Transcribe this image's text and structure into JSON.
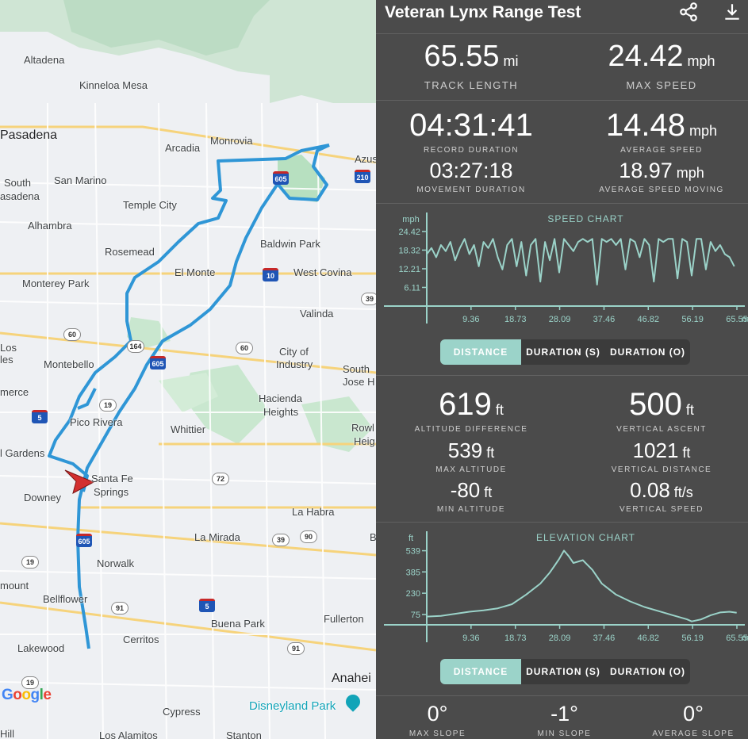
{
  "app": {
    "title": "Veteran Lynx Range Test",
    "share_icon": "share-icon",
    "download_icon": "download-icon"
  },
  "stats": {
    "track_length": {
      "value": "65.55",
      "unit": "mi",
      "label": "TRACK LENGTH"
    },
    "max_speed": {
      "value": "24.42",
      "unit": "mph",
      "label": "MAX SPEED"
    },
    "record_duration": {
      "value": "04:31:41",
      "label": "RECORD DURATION"
    },
    "average_speed": {
      "value": "14.48",
      "unit": "mph",
      "label": "AVERAGE SPEED"
    },
    "movement_duration": {
      "value": "03:27:18",
      "label": "MOVEMENT DURATION"
    },
    "average_speed_moving": {
      "value": "18.97",
      "unit": "mph",
      "label": "AVERAGE SPEED MOVING"
    },
    "altitude_difference": {
      "value": "619",
      "unit": "ft",
      "label": "ALTITUDE DIFFERENCE"
    },
    "vertical_ascent": {
      "value": "500",
      "unit": "ft",
      "label": "VERTICAL ASCENT"
    },
    "max_altitude": {
      "value": "539",
      "unit": "ft",
      "label": "MAX ALTITUDE"
    },
    "vertical_distance": {
      "value": "1021",
      "unit": "ft",
      "label": "VERTICAL DISTANCE"
    },
    "min_altitude": {
      "value": "-80",
      "unit": "ft",
      "label": "MIN ALTITUDE"
    },
    "vertical_speed": {
      "value": "0.08",
      "unit": "ft/s",
      "label": "VERTICAL SPEED"
    },
    "max_slope": {
      "value": "0°",
      "label": "MAX SLOPE"
    },
    "min_slope": {
      "value": "-1°",
      "label": "MIN SLOPE"
    },
    "average_slope": {
      "value": "0°",
      "label": "AVERAGE SLOPE"
    }
  },
  "speed_toggle": {
    "distance": "DISTANCE",
    "duration_s": "DURATION (S)",
    "duration_o": "DURATION (O)",
    "selected": "distance"
  },
  "elevation_toggle": {
    "distance": "DISTANCE",
    "duration_s": "DURATION (S)",
    "duration_o": "DURATION (O)",
    "selected": "distance"
  },
  "chart_data": [
    {
      "type": "line",
      "title": "SPEED CHART",
      "ylabel": "mph",
      "xlabel": "mi",
      "x_ticks": [
        "9.36",
        "18.73",
        "28.09",
        "37.46",
        "46.82",
        "56.19",
        "65.55"
      ],
      "y_ticks": [
        "24.42",
        "18.32",
        "12.21",
        "6.11"
      ],
      "xlim": [
        0,
        65.55
      ],
      "ylim": [
        0,
        27
      ],
      "color": "#9bd3c9",
      "series": [
        {
          "x": [
            0,
            1,
            2,
            3,
            4,
            5,
            6,
            7,
            8,
            9,
            10,
            11,
            12,
            13,
            14,
            15,
            16,
            17,
            18,
            19,
            20,
            21,
            22,
            23,
            24,
            25,
            26,
            27,
            28,
            29,
            30,
            31,
            32,
            33,
            34,
            35,
            36,
            37,
            38,
            39,
            40,
            41,
            42,
            43,
            44,
            45,
            46,
            47,
            48,
            49,
            50,
            51,
            52,
            53,
            54,
            55,
            56,
            57,
            58,
            59,
            60,
            61,
            62,
            63,
            64,
            65
          ],
          "y": [
            17,
            19,
            16,
            20,
            18,
            21,
            15,
            19,
            22,
            17,
            20,
            13,
            21,
            19,
            22,
            16,
            12,
            20,
            22,
            13,
            21,
            10,
            20,
            22,
            8,
            21,
            15,
            22,
            11,
            22,
            20,
            18,
            21,
            22,
            21,
            22,
            7,
            22,
            21,
            22,
            20,
            22,
            12,
            22,
            21,
            16,
            22,
            20,
            8,
            22,
            21,
            22,
            22,
            9,
            22,
            21,
            10,
            22,
            22,
            12,
            21,
            18,
            20,
            17,
            16,
            13
          ]
        }
      ]
    },
    {
      "type": "line",
      "title": "ELEVATION CHART",
      "ylabel": "ft",
      "xlabel": "mi",
      "x_ticks": [
        "9.36",
        "18.73",
        "28.09",
        "37.46",
        "46.82",
        "56.19",
        "65.55"
      ],
      "y_ticks": [
        "539",
        "385",
        "230",
        "75"
      ],
      "xlim": [
        0,
        65.55
      ],
      "ylim": [
        0,
        600
      ],
      "color": "#9bd3c9",
      "series": [
        {
          "x": [
            0,
            3,
            6,
            9,
            12,
            15,
            18,
            21,
            24,
            26,
            27,
            28,
            29,
            30,
            31,
            33,
            35,
            37,
            40,
            43,
            46,
            49,
            52,
            55,
            56,
            58,
            60,
            62,
            64,
            65.5
          ],
          "y": [
            60,
            65,
            80,
            95,
            105,
            120,
            150,
            220,
            300,
            380,
            430,
            480,
            540,
            500,
            450,
            470,
            400,
            300,
            220,
            170,
            130,
            100,
            70,
            40,
            25,
            40,
            70,
            90,
            95,
            88
          ]
        }
      ]
    }
  ],
  "map": {
    "labels": [
      {
        "id": "altadena",
        "text": "Altadena"
      },
      {
        "id": "kinneloa",
        "text": "Kinneloa Mesa"
      },
      {
        "id": "pasadena",
        "text": "Pasadena"
      },
      {
        "id": "arcadia",
        "text": "Arcadia"
      },
      {
        "id": "monrovia",
        "text": "Monrovia"
      },
      {
        "id": "azusa",
        "text": "Azus"
      },
      {
        "id": "south-pasadena-1",
        "text": "South"
      },
      {
        "id": "south-pasadena-2",
        "text": "asadena"
      },
      {
        "id": "san-marino",
        "text": "San Marino"
      },
      {
        "id": "temple-city",
        "text": "Temple City"
      },
      {
        "id": "alhambra",
        "text": "Alhambra"
      },
      {
        "id": "baldwin-park",
        "text": "Baldwin Park"
      },
      {
        "id": "rosemead",
        "text": "Rosemead"
      },
      {
        "id": "el-monte",
        "text": "El Monte"
      },
      {
        "id": "west-covina",
        "text": "West Covina"
      },
      {
        "id": "monterey-park",
        "text": "Monterey Park"
      },
      {
        "id": "valinda",
        "text": "Valinda"
      },
      {
        "id": "los",
        "text": "Los"
      },
      {
        "id": "les",
        "text": "les"
      },
      {
        "id": "city-of-industry-1",
        "text": "City of"
      },
      {
        "id": "city-of-industry-2",
        "text": "Industry"
      },
      {
        "id": "montebello",
        "text": "Montebello"
      },
      {
        "id": "south-san-jose-1",
        "text": "South"
      },
      {
        "id": "south-san-jose-2",
        "text": "Jose H"
      },
      {
        "id": "commerce",
        "text": "merce"
      },
      {
        "id": "hacienda-1",
        "text": "Hacienda"
      },
      {
        "id": "hacienda-2",
        "text": "Heights"
      },
      {
        "id": "pico-rivera",
        "text": "Pico Rivera"
      },
      {
        "id": "whittier",
        "text": "Whittier"
      },
      {
        "id": "rowland-1",
        "text": "Rowl"
      },
      {
        "id": "rowland-2",
        "text": "Heig"
      },
      {
        "id": "bell-gardens",
        "text": "l Gardens"
      },
      {
        "id": "santa-fe-1",
        "text": "Santa Fe"
      },
      {
        "id": "santa-fe-2",
        "text": "Springs"
      },
      {
        "id": "downey",
        "text": "Downey"
      },
      {
        "id": "la-habra",
        "text": "La Habra"
      },
      {
        "id": "la-mirada",
        "text": "La Mirada"
      },
      {
        "id": "norwalk",
        "text": "Norwalk"
      },
      {
        "id": "paramount",
        "text": "mount"
      },
      {
        "id": "bellflower",
        "text": "Bellflower"
      },
      {
        "id": "buena-park",
        "text": "Buena Park"
      },
      {
        "id": "fullerton",
        "text": "Fullerton"
      },
      {
        "id": "cerritos",
        "text": "Cerritos"
      },
      {
        "id": "lakewood",
        "text": "Lakewood"
      },
      {
        "id": "anaheim",
        "text": "Anahei"
      },
      {
        "id": "disneyland",
        "text": "Disneyland Park"
      },
      {
        "id": "cypress",
        "text": "Cypress"
      },
      {
        "id": "hill",
        "text": "Hill"
      },
      {
        "id": "los-alamitos",
        "text": "Los Alamitos"
      },
      {
        "id": "stanton",
        "text": "Stanton"
      },
      {
        "id": "b-edge",
        "text": "B"
      }
    ],
    "shields": [
      "605",
      "210",
      "10",
      "60",
      "164",
      "605",
      "60",
      "39",
      "19",
      "5",
      "72",
      "605",
      "39",
      "90",
      "19",
      "5",
      "91",
      "91",
      "19"
    ],
    "google": [
      "G",
      "o",
      "o",
      "g",
      "l",
      "e"
    ]
  }
}
